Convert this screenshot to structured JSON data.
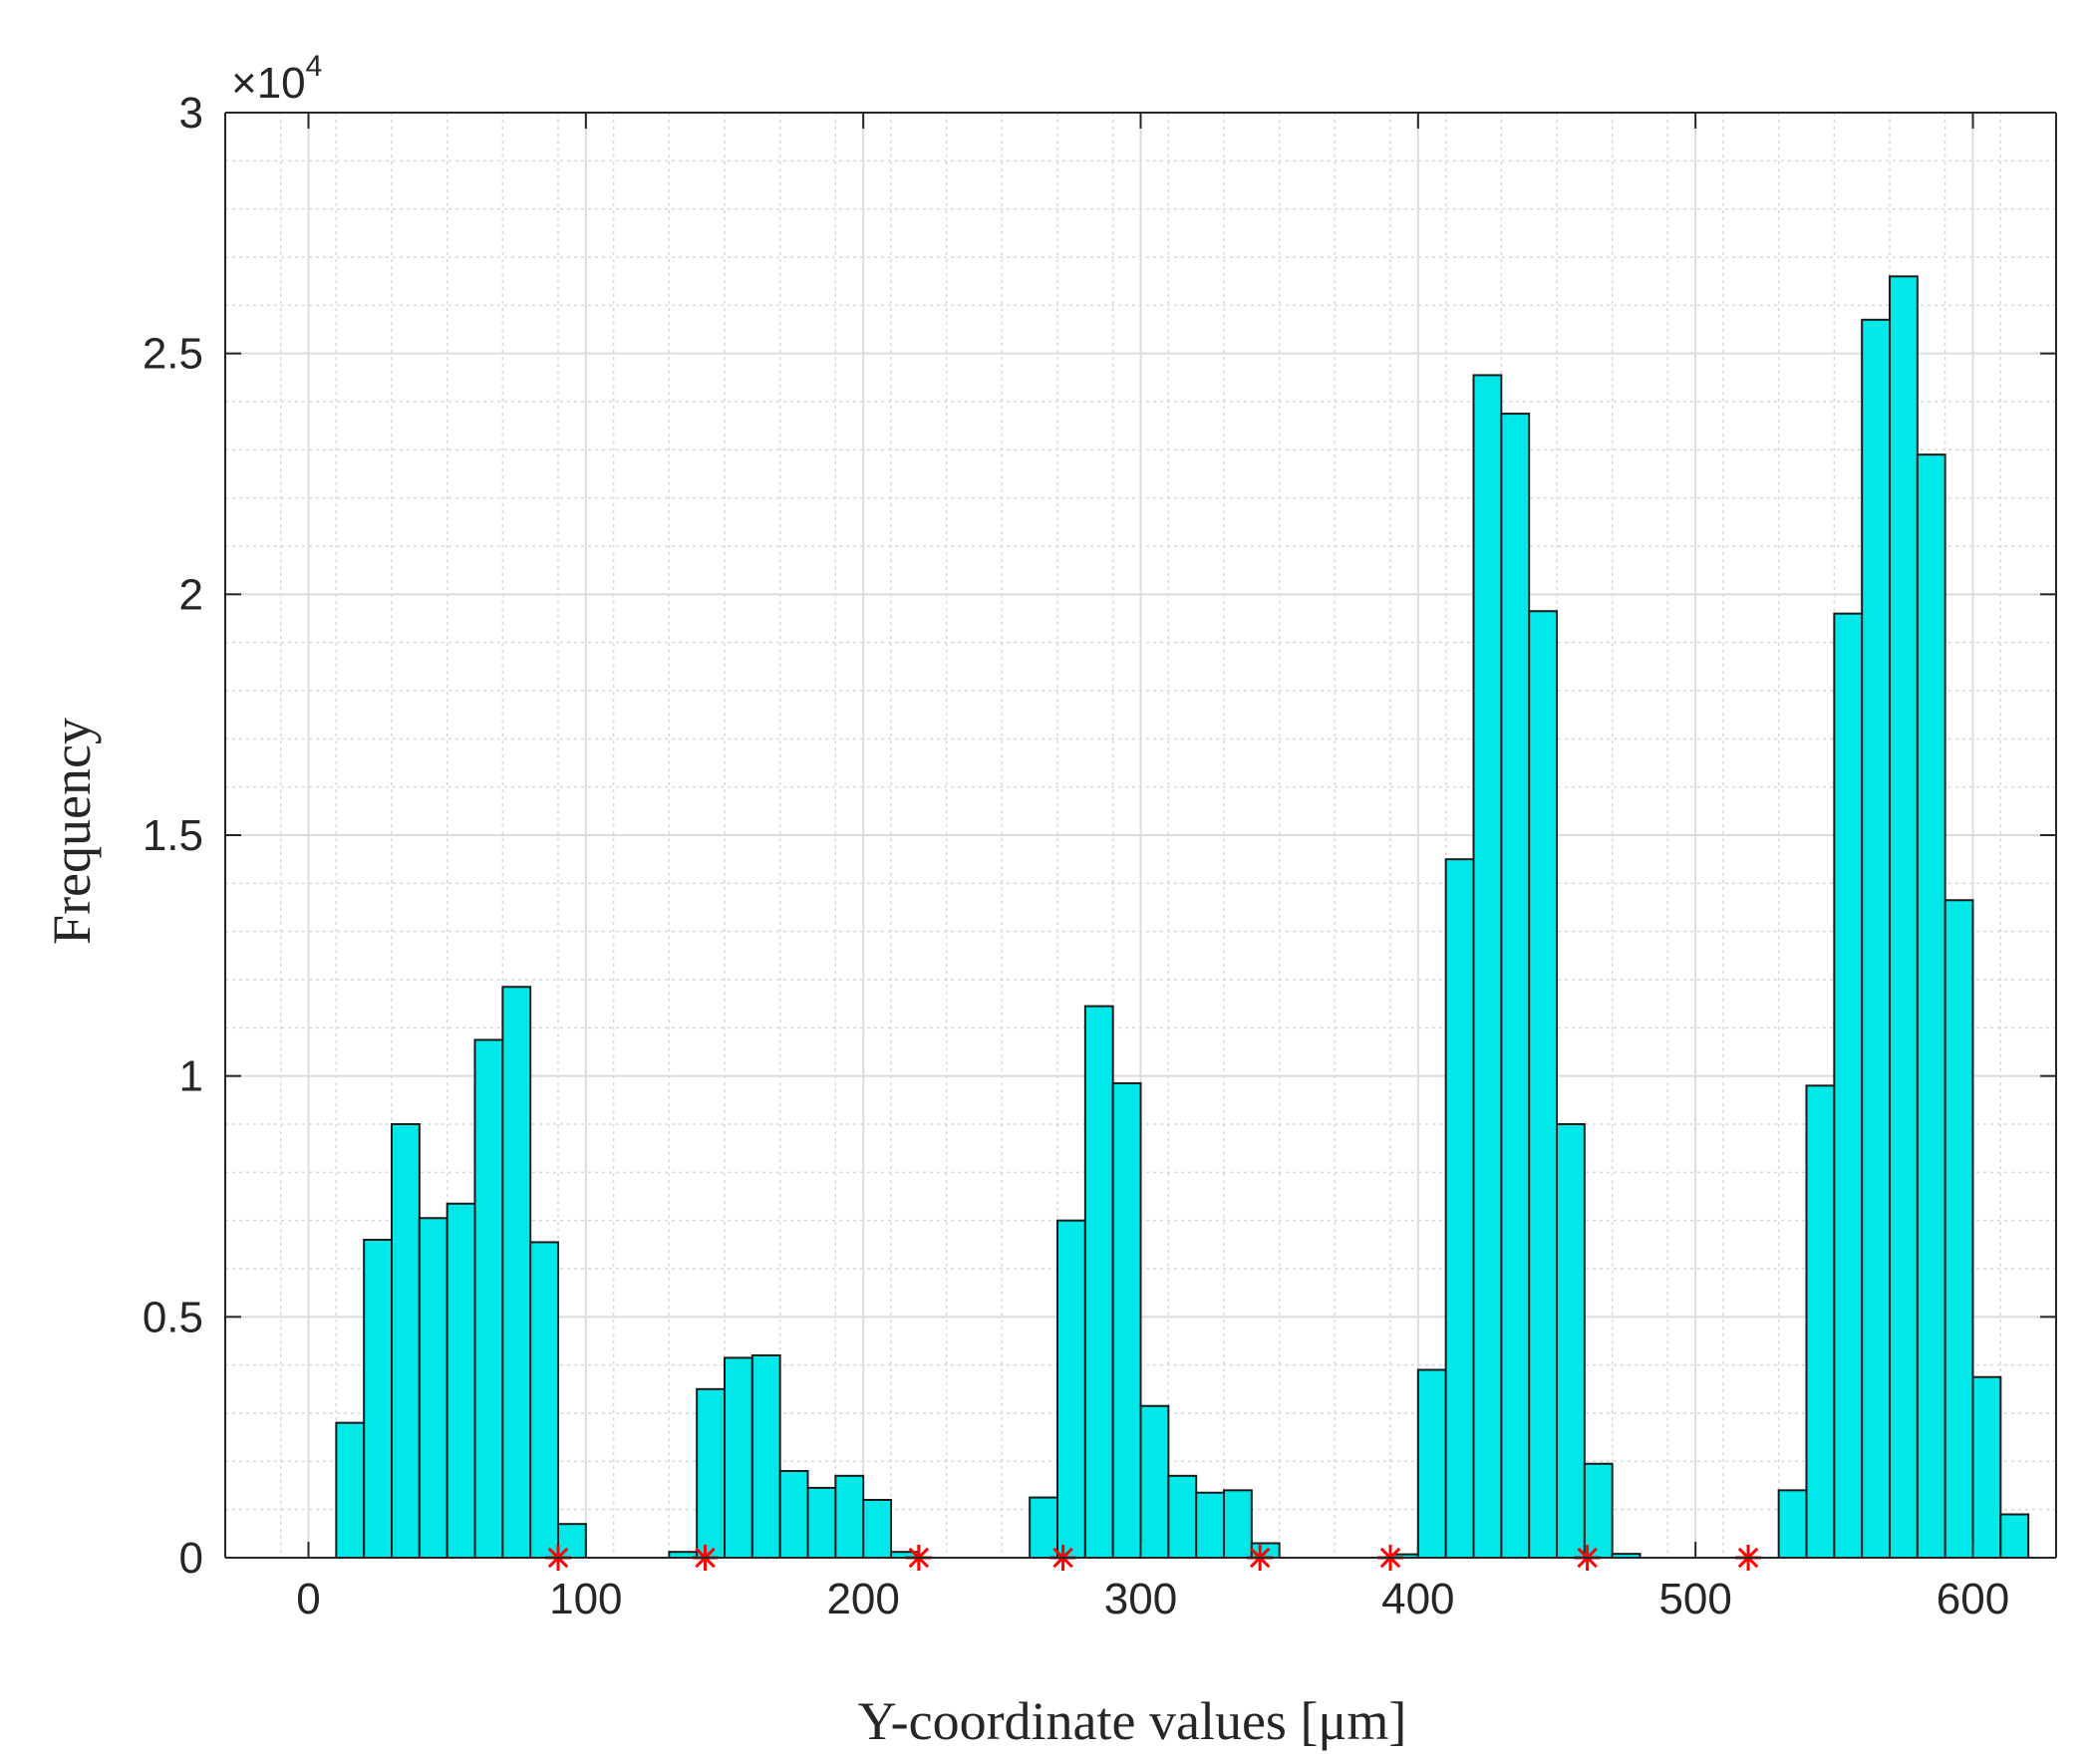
{
  "chart_data": {
    "type": "bar",
    "title": "",
    "xlabel": "Y-coordinate values [μm]",
    "ylabel": "Frequency",
    "xlim": [
      -30,
      630
    ],
    "ylim": [
      0,
      30000
    ],
    "y_multiplier_label": {
      "base": "×10",
      "exponent": "4"
    },
    "x_ticks": [
      0,
      100,
      200,
      300,
      400,
      500,
      600
    ],
    "x_tick_labels": [
      "0",
      "100",
      "200",
      "300",
      "400",
      "500",
      "600"
    ],
    "y_ticks": [
      0,
      5000,
      10000,
      15000,
      20000,
      25000,
      30000
    ],
    "y_tick_labels": [
      "0",
      "0.5",
      "1",
      "1.5",
      "2",
      "2.5",
      "3"
    ],
    "grid": true,
    "minor_grid": true,
    "bin_width": 10,
    "bin_start": 0,
    "bar_color": "#00e8e8",
    "bar_edge_color": "#1a1a1a",
    "marker_color": "#ff0000",
    "values": [
      0,
      2800,
      6600,
      9000,
      7050,
      7350,
      10750,
      11850,
      6550,
      700,
      0,
      0,
      0,
      120,
      3500,
      4150,
      4200,
      1800,
      1450,
      1700,
      1200,
      120,
      0,
      0,
      0,
      0,
      1250,
      7000,
      11450,
      9850,
      3150,
      1700,
      1350,
      1400,
      300,
      0,
      0,
      0,
      0,
      70,
      3900,
      14500,
      24550,
      23750,
      19650,
      9000,
      1950,
      80,
      0,
      0,
      0,
      0,
      0,
      1400,
      9800,
      19600,
      25700,
      26600,
      22900,
      13650,
      3750,
      900
    ],
    "markers": {
      "x": [
        90,
        143,
        220,
        272,
        343,
        390,
        461,
        519
      ],
      "y": [
        0,
        0,
        0,
        0,
        0,
        0,
        0,
        0
      ]
    }
  }
}
